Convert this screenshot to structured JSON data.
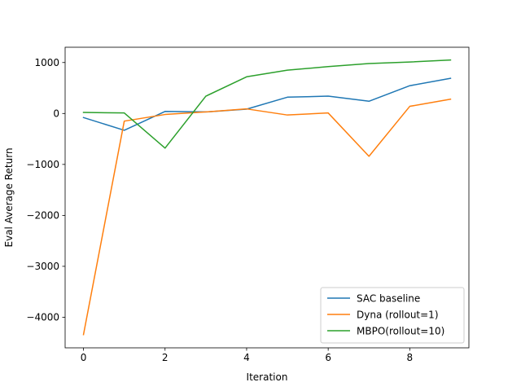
{
  "chart_data": {
    "type": "line",
    "title": "",
    "xlabel": "Iteration",
    "ylabel": "Eval Average Return",
    "x": [
      0,
      1,
      2,
      3,
      4,
      5,
      6,
      7,
      8,
      9
    ],
    "xlim": [
      -0.45,
      9.45
    ],
    "ylim": [
      -4600,
      1300
    ],
    "xticks": [
      0,
      2,
      4,
      6,
      8
    ],
    "yticks": [
      -4000,
      -3000,
      -2000,
      -1000,
      0,
      1000
    ],
    "ytick_labels": [
      "−4000",
      "−3000",
      "−2000",
      "−1000",
      "0",
      "1000"
    ],
    "grid": false,
    "legend_position": "lower-right",
    "series": [
      {
        "name": "SAC baseline",
        "color": "#1f77b4",
        "values": [
          -80,
          -330,
          40,
          30,
          85,
          320,
          340,
          240,
          545,
          690
        ]
      },
      {
        "name": "Dyna (rollout=1)",
        "color": "#ff7f0e",
        "values": [
          -4340,
          -150,
          -20,
          30,
          90,
          -30,
          10,
          -840,
          140,
          280
        ]
      },
      {
        "name": "MBPO(rollout=10)",
        "color": "#2ca02c",
        "values": [
          20,
          10,
          -680,
          340,
          720,
          850,
          920,
          980,
          1010,
          1050
        ]
      }
    ]
  }
}
